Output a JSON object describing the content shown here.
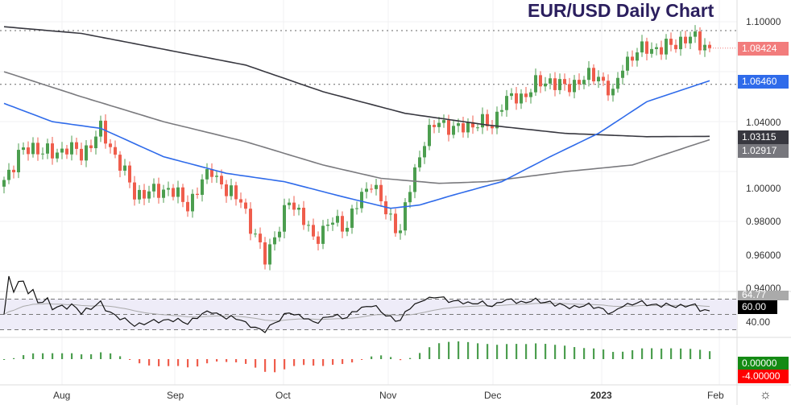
{
  "title": "EUR/USD Daily Chart",
  "colors": {
    "up": "#4c9e4f",
    "down": "#ef5d4c",
    "ma50": "#2f6bea",
    "ma100": "#7a7a7e",
    "ma200": "#37373f",
    "last": "#f27c7c"
  },
  "price_axis": [
    "1.10000",
    "1.04000",
    "1.00000",
    "0.98000",
    "0.96000",
    "0.94000"
  ],
  "badges": {
    "last": "1.08424",
    "ma50": "1.06460",
    "ma200": "1.03115",
    "ma100": "1.02917",
    "rsi_ma": "64.77",
    "rsi": "60.00",
    "hist_zero": "0.00000",
    "hist_neg": "-4.00000"
  },
  "rsi_axis": "40.00",
  "date_labels": [
    "Aug",
    "Sep",
    "Oct",
    "Nov",
    "Dec",
    "2023",
    "Feb"
  ],
  "chart_data": {
    "type": "candlestick",
    "title": "EUR/USD Daily Chart",
    "ylim": [
      0.94,
      1.1
    ],
    "horizontal_levels": [
      1.0947,
      1.0624
    ],
    "close_keypoints": [
      [
        0,
        1.005
      ],
      [
        3,
        1.02
      ],
      [
        6,
        1.025
      ],
      [
        10,
        1.02
      ],
      [
        13,
        1.025
      ],
      [
        16,
        1.02
      ],
      [
        20,
        1.035
      ],
      [
        23,
        1.02
      ],
      [
        27,
        0.997
      ],
      [
        30,
        0.997
      ],
      [
        34,
        1.0
      ],
      [
        38,
        0.99
      ],
      [
        43,
        1.012
      ],
      [
        46,
        0.997
      ],
      [
        49,
        0.995
      ],
      [
        51,
        0.975
      ],
      [
        54,
        0.96
      ],
      [
        57,
        0.975
      ],
      [
        59,
        0.995
      ],
      [
        62,
        0.98
      ],
      [
        64,
        0.97
      ],
      [
        68,
        0.98
      ],
      [
        71,
        0.978
      ],
      [
        73,
        0.99
      ],
      [
        76,
        1.005
      ],
      [
        79,
        0.985
      ],
      [
        82,
        0.975
      ],
      [
        84,
        1.0
      ],
      [
        87,
        1.03
      ],
      [
        90,
        1.04
      ],
      [
        94,
        1.035
      ],
      [
        98,
        1.04
      ],
      [
        101,
        1.037
      ],
      [
        103,
        1.052
      ],
      [
        107,
        1.055
      ],
      [
        110,
        1.062
      ],
      [
        113,
        1.065
      ],
      [
        116,
        1.06
      ],
      [
        119,
        1.065
      ],
      [
        123,
        1.068
      ],
      [
        126,
        1.055
      ],
      [
        128,
        1.075
      ],
      [
        133,
        1.085
      ],
      [
        136,
        1.083
      ],
      [
        139,
        1.088
      ],
      [
        143,
        1.09
      ],
      [
        146,
        1.0842
      ]
    ],
    "ma50_keypoints": [
      [
        0,
        1.051
      ],
      [
        10,
        1.04
      ],
      [
        20,
        1.036
      ],
      [
        33,
        1.019
      ],
      [
        46,
        1.009
      ],
      [
        58,
        1.004
      ],
      [
        70,
        0.995
      ],
      [
        80,
        0.988
      ],
      [
        86,
        0.99
      ],
      [
        93,
        0.996
      ],
      [
        103,
        1.004
      ],
      [
        113,
        1.019
      ],
      [
        123,
        1.033
      ],
      [
        133,
        1.052
      ],
      [
        146,
        1.0646
      ]
    ],
    "ma100_keypoints": [
      [
        0,
        1.07
      ],
      [
        16,
        1.055
      ],
      [
        33,
        1.04
      ],
      [
        50,
        1.028
      ],
      [
        66,
        1.014
      ],
      [
        78,
        1.006
      ],
      [
        90,
        1.003
      ],
      [
        100,
        1.004
      ],
      [
        116,
        1.01
      ],
      [
        130,
        1.014
      ],
      [
        146,
        1.0292
      ]
    ],
    "ma200_keypoints": [
      [
        0,
        1.097
      ],
      [
        16,
        1.093
      ],
      [
        50,
        1.074
      ],
      [
        66,
        1.058
      ],
      [
        83,
        1.045
      ],
      [
        100,
        1.038
      ],
      [
        116,
        1.033
      ],
      [
        133,
        1.031
      ],
      [
        146,
        1.0312
      ]
    ]
  }
}
